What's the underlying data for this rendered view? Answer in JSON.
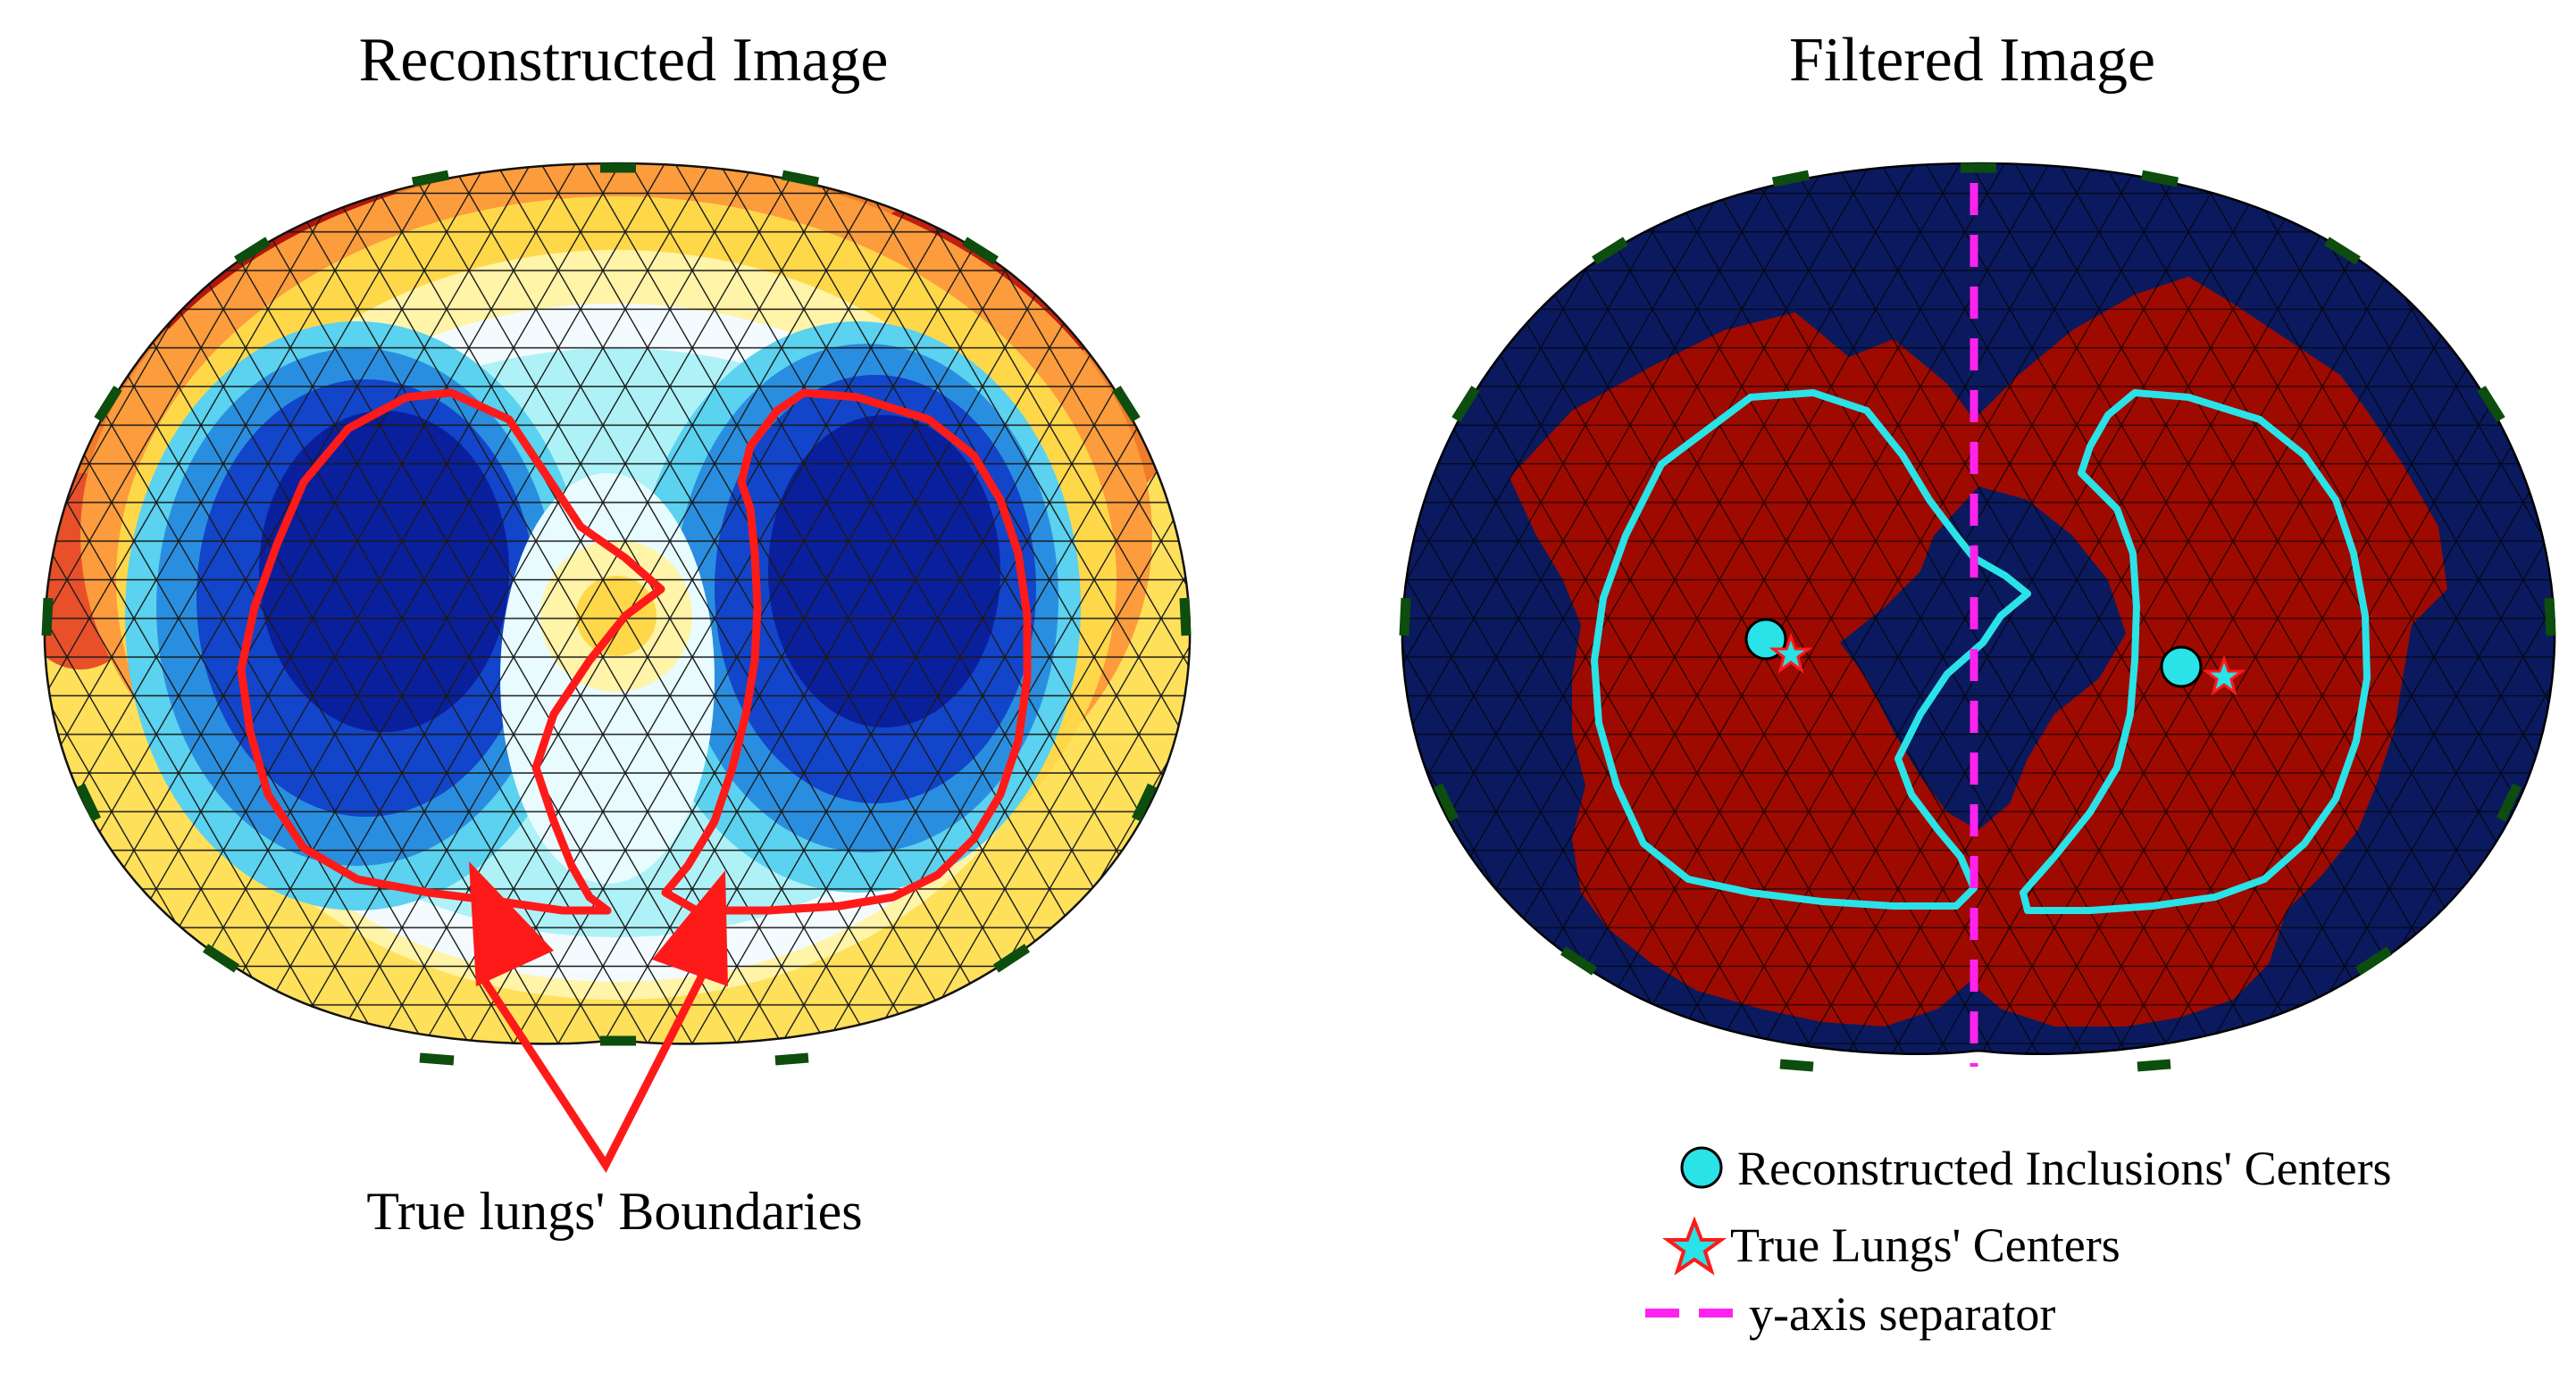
{
  "panels": [
    {
      "title": "Reconstructed Image",
      "annotation": "True lungs' Boundaries",
      "colormap": [
        "#7f0000",
        "#d7301f",
        "#fc8d59",
        "#ffd84a",
        "#fff4a8",
        "#f4fbff",
        "#aef2f8",
        "#5ad2f0",
        "#2a8ee0",
        "#1245c9",
        "#0a1f9c"
      ],
      "lung_boundary_color": "#ff1a1a",
      "electrode_color": "#0d4d0d"
    },
    {
      "title": "Filtered Image",
      "background_color": "#0b1a5e",
      "inclusion_color": "#9e0a00",
      "boundary_color": "#29e3e8",
      "separator_color": "#ff22ee",
      "electrode_color": "#0d4d0d"
    }
  ],
  "legend": {
    "items": [
      {
        "label": "Reconstructed Inclusions' Centers",
        "marker": "circle",
        "color": "#29e3e8"
      },
      {
        "label": "True Lungs' Centers",
        "marker": "star",
        "color": "#29e3e8",
        "edge": "#ff1a1a"
      },
      {
        "label": "y-axis separator",
        "marker": "dashed-line",
        "color": "#ff22ee"
      }
    ]
  }
}
